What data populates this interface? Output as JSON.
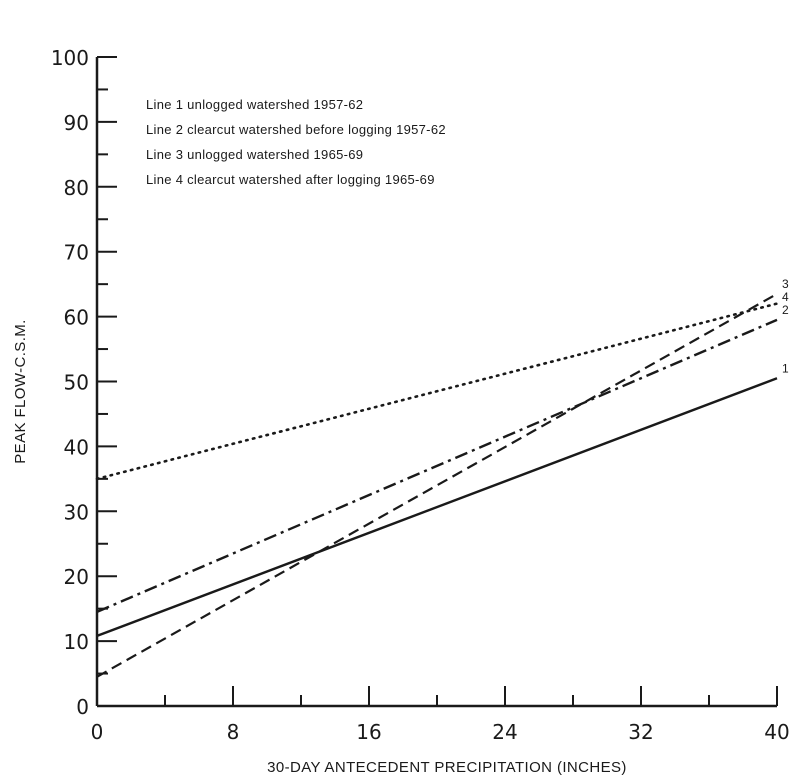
{
  "chart_data": {
    "type": "line",
    "title": "",
    "xlabel": "30-DAY ANTECEDENT PRECIPITATION (INCHES)",
    "ylabel": "PEAK FLOW-C.S.M.",
    "xlim": [
      0,
      40
    ],
    "ylim": [
      0,
      100
    ],
    "x_major_ticks": [
      0,
      8,
      16,
      24,
      32,
      40
    ],
    "x_minor_ticks": [
      4,
      12,
      20,
      28,
      36
    ],
    "y_major_ticks": [
      0,
      10,
      20,
      30,
      40,
      50,
      60,
      70,
      80,
      90,
      100
    ],
    "y_minor_ticks": [
      5,
      15,
      25,
      35,
      45,
      55,
      65,
      75,
      85,
      95
    ],
    "grid": false,
    "legend_position": "top-left",
    "legend": [
      "Line 1  unlogged watershed 1957-62",
      "Line 2  clearcut watershed before logging 1957-62",
      "Line 3  unlogged watershed 1965-69",
      "Line 4  clearcut watershed after logging 1965-69"
    ],
    "series": [
      {
        "end_label": "1",
        "style": "solid",
        "x": [
          0,
          40
        ],
        "y": [
          10.8,
          50.5
        ]
      },
      {
        "end_label": "2",
        "style": "dashdot",
        "x": [
          0,
          40
        ],
        "y": [
          14.5,
          59.5
        ]
      },
      {
        "end_label": "3",
        "style": "dashed",
        "x": [
          0,
          40
        ],
        "y": [
          4.5,
          63.5
        ]
      },
      {
        "end_label": "4",
        "style": "dotted",
        "x": [
          0,
          40
        ],
        "y": [
          35,
          62
        ]
      }
    ],
    "line_color": "#1a1a1a"
  }
}
